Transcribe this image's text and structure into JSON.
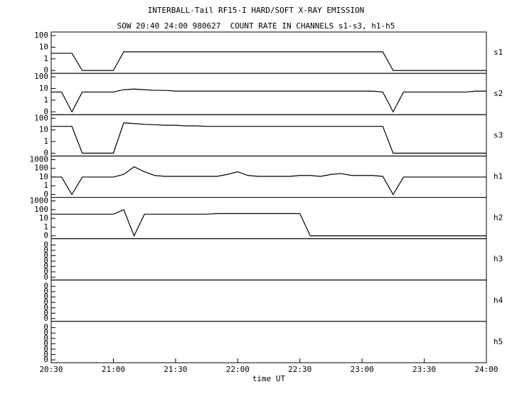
{
  "chart_data": {
    "type": "line",
    "title": "INTERBALL-Tail RF15-I HARD/SOFT X-RAY EMISSION",
    "subtitle": "SOW 20:40 24:00 980627  COUNT RATE IN CHANNELS s1-s3, h1-h5",
    "xlabel": "time UT",
    "xlim": [
      "20:30",
      "24:00"
    ],
    "xticks": [
      "20:30",
      "21:00",
      "21:30",
      "22:00",
      "22:30",
      "23:00",
      "23:30",
      "24:00"
    ],
    "color": "#000000",
    "x": [
      "20:30",
      "20:35",
      "20:40",
      "20:45",
      "20:50",
      "20:55",
      "21:00",
      "21:05",
      "21:10",
      "21:15",
      "21:20",
      "21:25",
      "21:30",
      "21:35",
      "21:40",
      "21:45",
      "21:50",
      "21:55",
      "22:00",
      "22:05",
      "22:10",
      "22:15",
      "22:20",
      "22:25",
      "22:30",
      "22:35",
      "22:40",
      "22:45",
      "22:50",
      "22:55",
      "23:00",
      "23:05",
      "23:10",
      "23:15",
      "23:20",
      "23:25",
      "23:30",
      "23:35",
      "23:40",
      "23:45",
      "23:50",
      "23:55",
      "24:00"
    ],
    "panels": [
      {
        "label": "s1",
        "yscale": "symlog",
        "ylim": [
          0,
          100
        ],
        "yticks": [
          100,
          10,
          1,
          0
        ],
        "values": [
          3,
          3,
          3,
          0,
          0,
          0,
          0,
          4,
          4,
          4,
          4,
          4,
          4,
          4,
          4,
          4,
          4,
          4,
          4,
          4,
          4,
          4,
          4,
          4,
          4,
          4,
          4,
          4,
          4,
          4,
          4,
          4,
          4,
          0,
          0,
          0,
          0,
          0,
          0,
          0,
          0,
          0,
          0
        ]
      },
      {
        "label": "s2",
        "yscale": "symlog",
        "ylim": [
          0,
          100
        ],
        "yticks": [
          100,
          10,
          1,
          0
        ],
        "values": [
          5,
          5,
          0,
          5,
          5,
          5,
          5,
          8,
          9,
          8,
          7,
          7,
          6,
          6,
          6,
          6,
          6,
          6,
          6,
          6,
          6,
          6,
          6,
          6,
          6,
          6,
          6,
          6,
          6,
          6,
          6,
          6,
          5,
          0,
          5,
          5,
          5,
          5,
          5,
          5,
          5,
          6,
          6
        ]
      },
      {
        "label": "s3",
        "yscale": "symlog",
        "ylim": [
          0,
          100
        ],
        "yticks": [
          100,
          10,
          1,
          0
        ],
        "values": [
          20,
          20,
          20,
          0,
          0,
          0,
          0,
          40,
          35,
          30,
          28,
          25,
          25,
          22,
          22,
          20,
          20,
          20,
          20,
          20,
          20,
          20,
          20,
          20,
          20,
          20,
          20,
          20,
          20,
          20,
          20,
          20,
          20,
          0,
          0,
          0,
          0,
          0,
          0,
          0,
          0,
          0,
          0
        ]
      },
      {
        "label": "h1",
        "yscale": "symlog",
        "ylim": [
          0,
          1000
        ],
        "yticks": [
          1000,
          100,
          10,
          1,
          0
        ],
        "values": [
          10,
          10,
          0,
          10,
          10,
          10,
          10,
          20,
          150,
          40,
          15,
          12,
          12,
          12,
          12,
          12,
          12,
          20,
          40,
          15,
          12,
          12,
          12,
          12,
          15,
          15,
          12,
          20,
          25,
          15,
          15,
          15,
          12,
          0,
          10,
          10,
          10,
          10,
          10,
          10,
          10,
          10,
          10
        ]
      },
      {
        "label": "h2",
        "yscale": "symlog",
        "ylim": [
          0,
          1000
        ],
        "yticks": [
          1000,
          100,
          10,
          1,
          0
        ],
        "values": [
          30,
          30,
          30,
          30,
          30,
          30,
          30,
          100,
          0,
          30,
          30,
          30,
          30,
          30,
          30,
          30,
          35,
          35,
          35,
          35,
          35,
          35,
          35,
          35,
          35,
          0,
          0,
          0,
          0,
          0,
          0,
          0,
          0,
          0,
          0,
          0,
          0,
          0,
          0,
          0,
          0,
          0,
          0
        ]
      },
      {
        "label": "h3",
        "yscale": "linear",
        "ylim": [
          0,
          0.65
        ],
        "yticks": [
          {
            "value": 0.6,
            "label": "0"
          },
          {
            "value": 0.5,
            "label": "0"
          },
          {
            "value": 0.4,
            "label": "0"
          },
          {
            "value": 0.3,
            "label": "0"
          },
          {
            "value": 0.2,
            "label": "0"
          },
          {
            "value": 0.1,
            "label": "0"
          },
          {
            "value": 0,
            "label": "0"
          }
        ]
      },
      {
        "label": "h4",
        "yscale": "linear",
        "ylim": [
          0,
          0.65
        ],
        "yticks": [
          {
            "value": 0.6,
            "label": "0"
          },
          {
            "value": 0.5,
            "label": "0"
          },
          {
            "value": 0.4,
            "label": "0"
          },
          {
            "value": 0.3,
            "label": "0"
          },
          {
            "value": 0.2,
            "label": "0"
          },
          {
            "value": 0.1,
            "label": "0"
          },
          {
            "value": 0,
            "label": "0"
          }
        ]
      },
      {
        "label": "h5",
        "yscale": "linear",
        "ylim": [
          0,
          0.65
        ],
        "yticks": [
          {
            "value": 0.6,
            "label": "0"
          },
          {
            "value": 0.5,
            "label": "0"
          },
          {
            "value": 0.4,
            "label": "0"
          },
          {
            "value": 0.3,
            "label": "0"
          },
          {
            "value": 0.2,
            "label": "0"
          },
          {
            "value": 0.1,
            "label": "0"
          },
          {
            "value": 0,
            "label": "0"
          }
        ]
      }
    ]
  }
}
